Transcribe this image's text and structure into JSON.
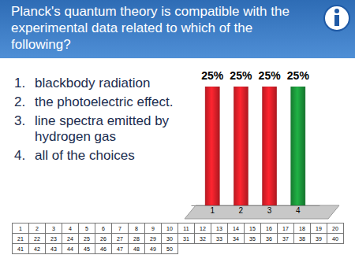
{
  "question": "Planck's quantum theory is compatible with the experimental data related to which of the following?",
  "choices": [
    {
      "label": "1.",
      "text": "blackbody radiation"
    },
    {
      "label": "2.",
      "text": "the photoelectric effect."
    },
    {
      "label": "3.",
      "text": "line spectra emitted by hydrogen gas"
    },
    {
      "label": "4.",
      "text": "all of the choices"
    }
  ],
  "chart_data": {
    "type": "bar",
    "categories": [
      "1",
      "2",
      "3",
      "4"
    ],
    "values": [
      25,
      25,
      25,
      25
    ],
    "value_labels": [
      "25%",
      "25%",
      "25%",
      "25%"
    ],
    "data_labels": true,
    "colors": [
      "#e8202a",
      "#e8202a",
      "#e8202a",
      "#1c9a3c"
    ],
    "ylim": [
      0,
      25
    ],
    "tick_labels": "x",
    "grid": false
  },
  "response_grid": [
    [
      1,
      2,
      3,
      4,
      5,
      6,
      7,
      8,
      9,
      10,
      11,
      12,
      13,
      14,
      15,
      16,
      17,
      18,
      19,
      20
    ],
    [
      21,
      22,
      23,
      24,
      25,
      26,
      27,
      28,
      29,
      30,
      31,
      32,
      33,
      34,
      35,
      36,
      37,
      38,
      39,
      40
    ],
    [
      41,
      42,
      43,
      44,
      45,
      46,
      47,
      48,
      49,
      50
    ]
  ]
}
